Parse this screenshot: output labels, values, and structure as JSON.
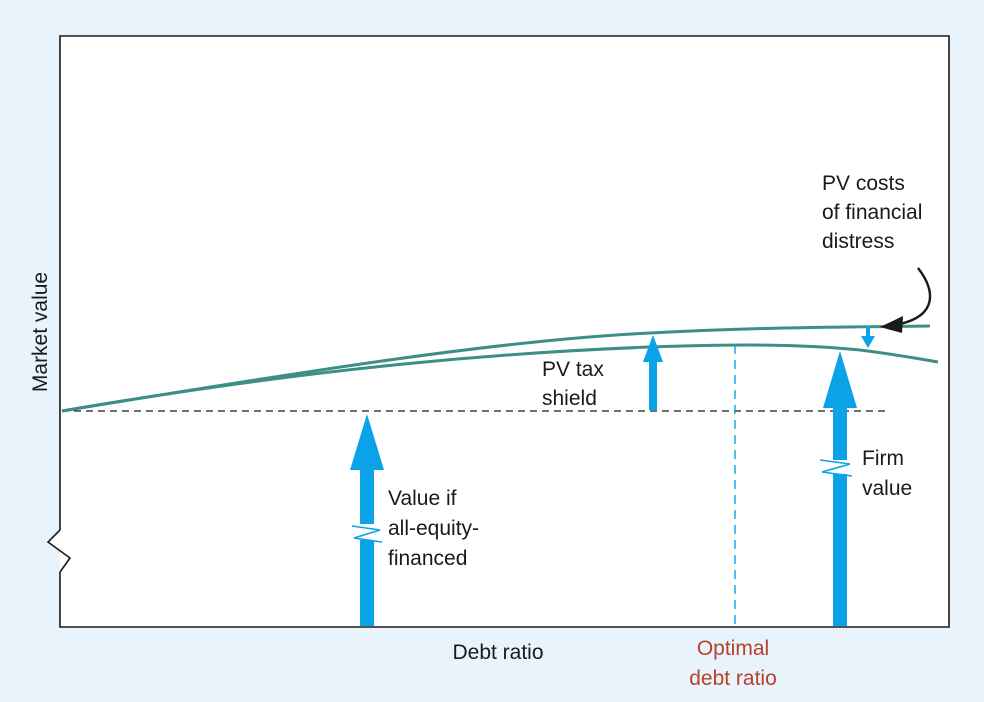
{
  "axes": {
    "ylabel": "Market value",
    "xlabel": "Debt ratio",
    "optimal_label": [
      "Optimal",
      "debt ratio"
    ]
  },
  "annotations": {
    "costs_of_distress": [
      "PV costs",
      "of financial",
      "distress"
    ],
    "tax_shield": [
      "PV tax",
      "shield"
    ],
    "all_equity": [
      "Value if",
      "all-equity-",
      "financed"
    ],
    "firm_value": [
      "Firm",
      "value"
    ]
  },
  "colors": {
    "background": "#e8f3fb",
    "curve": "#3d8f86",
    "arrow": "#0aa3e8",
    "optimal_text": "#b5412e",
    "axis": "#1a1a1a"
  }
}
